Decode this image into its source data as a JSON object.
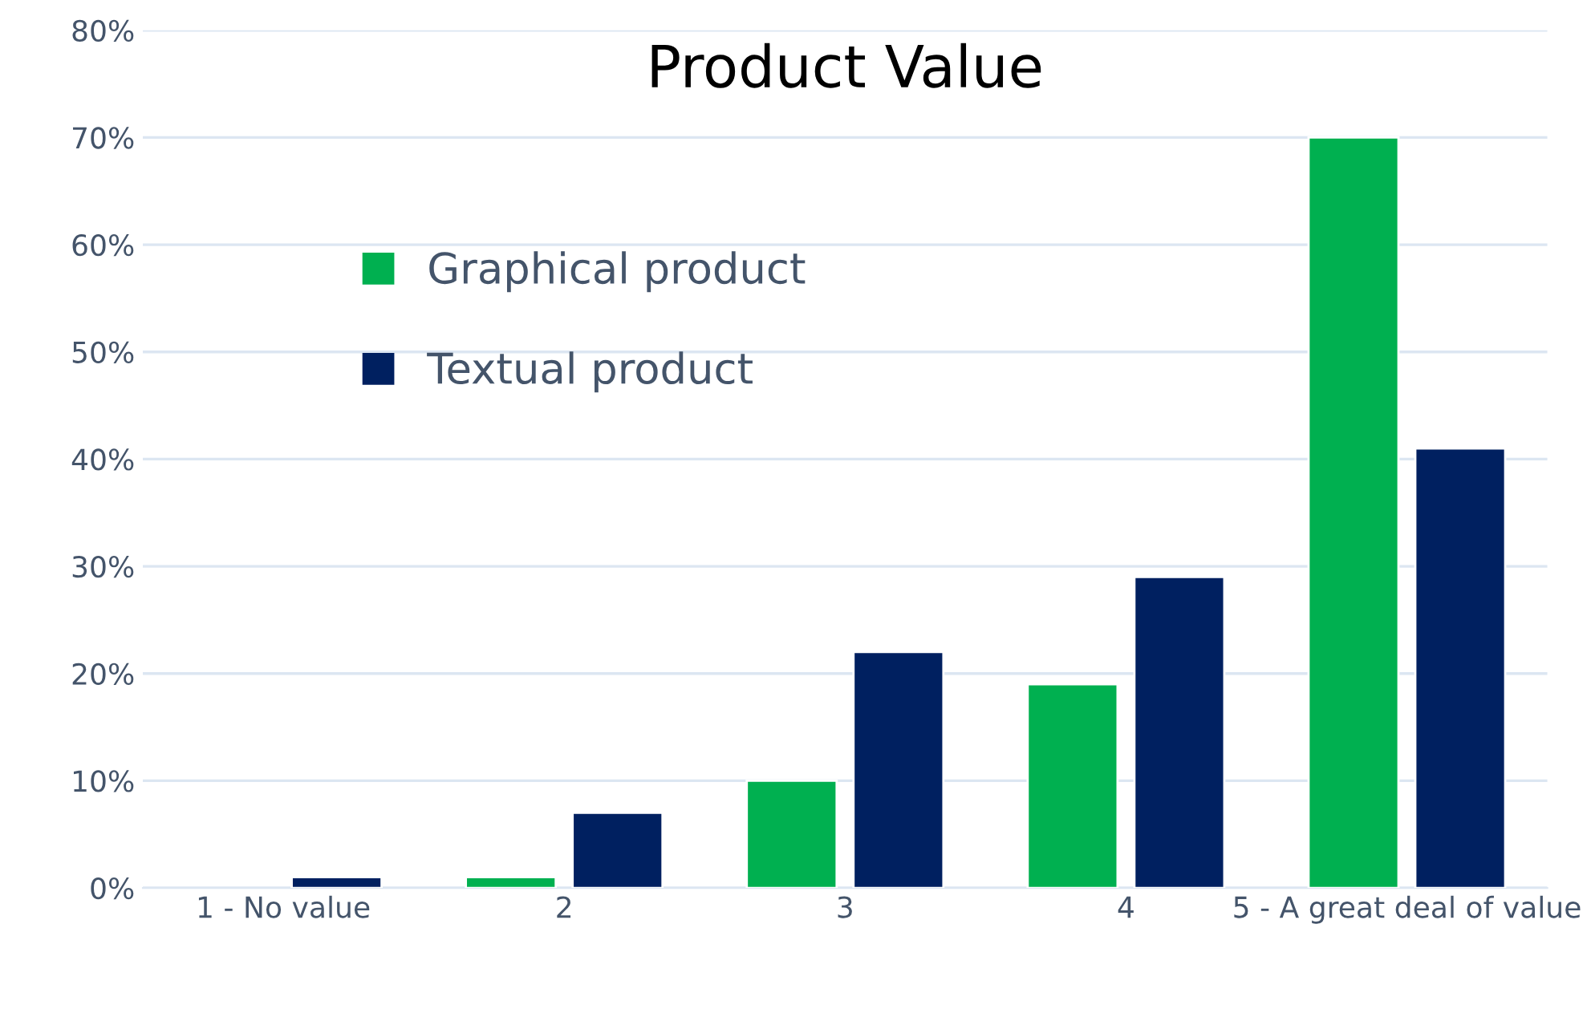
{
  "chart_data": {
    "type": "bar",
    "title": "Product Value",
    "categories": [
      "1 - No value",
      "2",
      "3",
      "4",
      "5 - A great deal of value"
    ],
    "series": [
      {
        "name": "Graphical product",
        "color": "#00b050",
        "values": [
          null,
          1,
          10,
          19,
          70
        ]
      },
      {
        "name": "Textual product",
        "color": "#002060",
        "values": [
          1,
          7,
          22,
          29,
          41
        ]
      }
    ],
    "ylim": [
      0,
      80
    ],
    "yticks": [
      {
        "value": 0,
        "label": "0%"
      },
      {
        "value": 10,
        "label": "10%"
      },
      {
        "value": 20,
        "label": "20%"
      },
      {
        "value": 30,
        "label": "30%"
      },
      {
        "value": 40,
        "label": "40%"
      },
      {
        "value": 50,
        "label": "50%"
      },
      {
        "value": 60,
        "label": "60%"
      },
      {
        "value": 70,
        "label": "70%"
      },
      {
        "value": 80,
        "label": "80%"
      }
    ],
    "grid": "y",
    "legend": "center left"
  }
}
